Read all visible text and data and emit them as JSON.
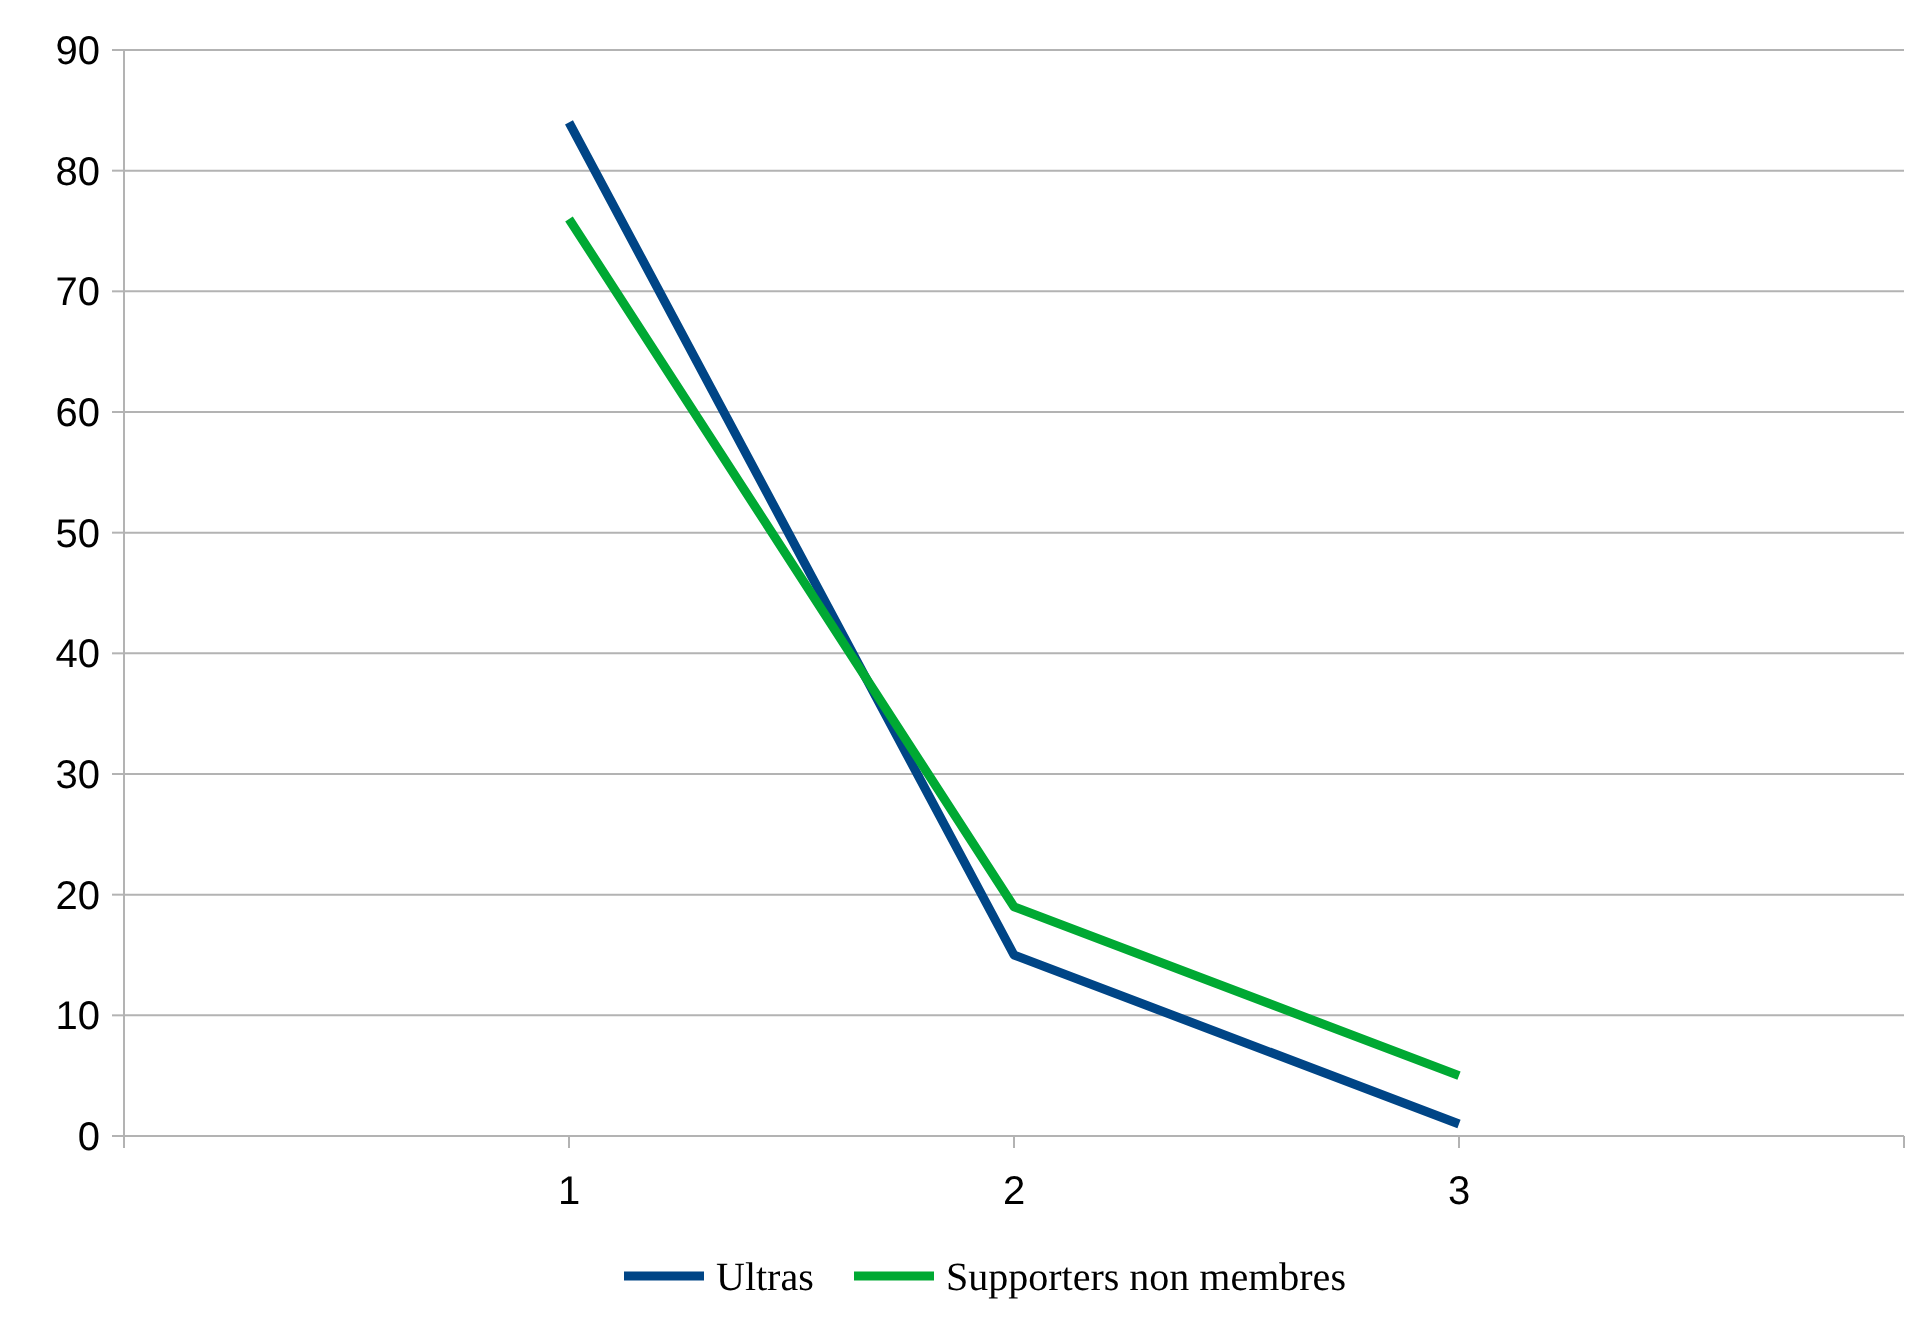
{
  "chart_data": {
    "type": "line",
    "categories": [
      "1",
      "2",
      "3"
    ],
    "series": [
      {
        "name": "Ultras",
        "color": "#004586",
        "values": [
          84,
          15,
          1
        ]
      },
      {
        "name": "Supporters non membres",
        "color": "#00a933",
        "values": [
          76,
          19,
          5
        ]
      }
    ],
    "ylim": [
      0,
      90
    ],
    "yticks": [
      0,
      10,
      20,
      30,
      40,
      50,
      60,
      70,
      80,
      90
    ],
    "grid": "y",
    "legend": "bottom",
    "marker": "none",
    "line_style": "solid"
  }
}
